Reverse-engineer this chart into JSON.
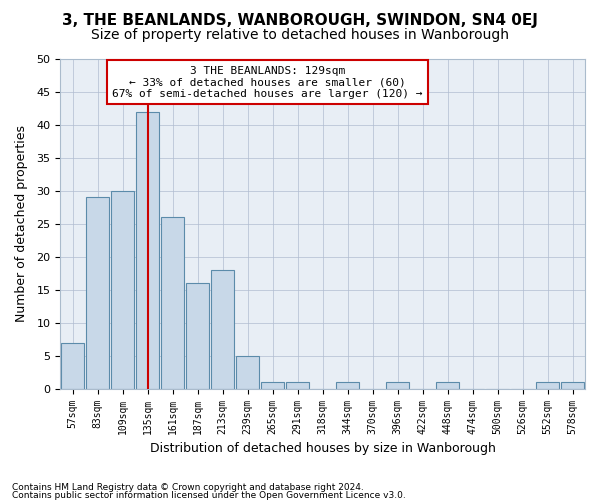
{
  "title": "3, THE BEANLANDS, WANBOROUGH, SWINDON, SN4 0EJ",
  "subtitle": "Size of property relative to detached houses in Wanborough",
  "xlabel": "Distribution of detached houses by size in Wanborough",
  "ylabel": "Number of detached properties",
  "footnote1": "Contains HM Land Registry data © Crown copyright and database right 2024.",
  "footnote2": "Contains public sector information licensed under the Open Government Licence v3.0.",
  "categories": [
    "57sqm",
    "83sqm",
    "109sqm",
    "135sqm",
    "161sqm",
    "187sqm",
    "213sqm",
    "239sqm",
    "265sqm",
    "291sqm",
    "318sqm",
    "344sqm",
    "370sqm",
    "396sqm",
    "422sqm",
    "448sqm",
    "474sqm",
    "500sqm",
    "526sqm",
    "552sqm",
    "578sqm"
  ],
  "values": [
    7,
    29,
    30,
    42,
    26,
    16,
    18,
    5,
    1,
    1,
    0,
    1,
    0,
    1,
    0,
    1,
    0,
    0,
    0,
    1,
    1
  ],
  "bar_color": "#c8d8e8",
  "bar_edge_color": "#5b8baa",
  "reference_line_x": 3.0,
  "annotation_line1": "3 THE BEANLANDS: 129sqm",
  "annotation_line2": "← 33% of detached houses are smaller (60)",
  "annotation_line3": "67% of semi-detached houses are larger (120) →",
  "annotation_box_color": "#ffffff",
  "annotation_box_edge": "#cc0000",
  "vline_color": "#cc0000",
  "ylim": [
    0,
    50
  ],
  "yticks": [
    0,
    5,
    10,
    15,
    20,
    25,
    30,
    35,
    40,
    45,
    50
  ],
  "bg_color": "#e8eef5",
  "title_fontsize": 11,
  "subtitle_fontsize": 10
}
